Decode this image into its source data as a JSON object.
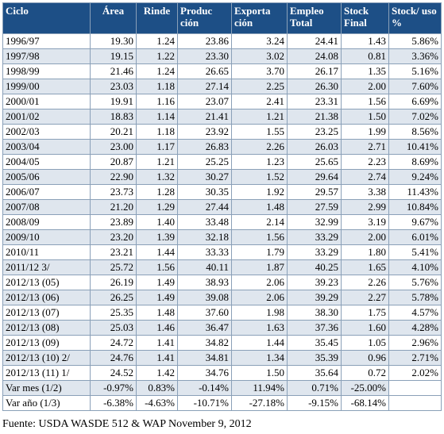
{
  "headers": [
    "Ciclo",
    "Área",
    "Rinde",
    "Produc ción",
    "Exporta ción",
    "Empleo Total",
    "Stock Final",
    "Stock/ uso %"
  ],
  "rows": [
    [
      "1996/97",
      "19.30",
      "1.24",
      "23.86",
      "3.24",
      "24.41",
      "1.43",
      "5.86%"
    ],
    [
      "1997/98",
      "19.15",
      "1.22",
      "23.30",
      "3.02",
      "24.08",
      "0.81",
      "3.36%"
    ],
    [
      "1998/99",
      "21.46",
      "1.24",
      "26.65",
      "3.70",
      "26.17",
      "1.35",
      "5.16%"
    ],
    [
      "1999/00",
      "23.03",
      "1.18",
      "27.14",
      "2.25",
      "26.30",
      "2.00",
      "7.60%"
    ],
    [
      "2000/01",
      "19.91",
      "1.16",
      "23.07",
      "2.41",
      "23.31",
      "1.56",
      "6.69%"
    ],
    [
      "2001/02",
      "18.83",
      "1.14",
      "21.41",
      "1.21",
      "21.38",
      "1.50",
      "7.02%"
    ],
    [
      "2002/03",
      "20.21",
      "1.18",
      "23.92",
      "1.55",
      "23.25",
      "1.99",
      "8.56%"
    ],
    [
      "2003/04",
      "23.00",
      "1.17",
      "26.83",
      "2.26",
      "26.03",
      "2.71",
      "10.41%"
    ],
    [
      "2004/05",
      "20.87",
      "1.21",
      "25.25",
      "1.23",
      "25.65",
      "2.23",
      "8.69%"
    ],
    [
      "2005/06",
      "22.90",
      "1.32",
      "30.27",
      "1.52",
      "29.64",
      "2.74",
      "9.24%"
    ],
    [
      "2006/07",
      "23.73",
      "1.28",
      "30.35",
      "1.92",
      "29.57",
      "3.38",
      "11.43%"
    ],
    [
      "2007/08",
      "21.20",
      "1.29",
      "27.44",
      "1.48",
      "27.59",
      "2.99",
      "10.84%"
    ],
    [
      "2008/09",
      "23.89",
      "1.40",
      "33.48",
      "2.14",
      "32.99",
      "3.19",
      "9.67%"
    ],
    [
      "2009/10",
      "23.20",
      "1.39",
      "32.18",
      "1.56",
      "33.29",
      "2.00",
      "6.01%"
    ],
    [
      "2010/11",
      "23.21",
      "1.44",
      "33.33",
      "1.79",
      "33.29",
      "1.80",
      "5.41%"
    ],
    [
      "2011/12 3/",
      "25.72",
      "1.56",
      "40.11",
      "1.87",
      "40.25",
      "1.65",
      "4.10%"
    ],
    [
      "2012/13 (05)",
      "26.19",
      "1.49",
      "38.93",
      "2.06",
      "39.23",
      "2.26",
      "5.76%"
    ],
    [
      "2012/13 (06)",
      "26.25",
      "1.49",
      "39.08",
      "2.06",
      "39.29",
      "2.27",
      "5.78%"
    ],
    [
      "2012/13 (07)",
      "25.35",
      "1.48",
      "37.60",
      "1.98",
      "38.30",
      "1.75",
      "4.57%"
    ],
    [
      "2012/13 (08)",
      "25.03",
      "1.46",
      "36.47",
      "1.63",
      "37.36",
      "1.60",
      "4.28%"
    ],
    [
      "2012/13 (09)",
      "24.72",
      "1.41",
      "34.82",
      "1.44",
      "35.45",
      "1.05",
      "2.96%"
    ],
    [
      "2012/13 (10) 2/",
      "24.76",
      "1.41",
      "34.81",
      "1.34",
      "35.39",
      "0.96",
      "2.71%"
    ],
    [
      "2012/13 (11) 1/",
      "24.52",
      "1.42",
      "34.76",
      "1.50",
      "35.64",
      "0.72",
      "2.02%"
    ],
    [
      "Var mes (1/2)",
      "-0.97%",
      "0.83%",
      "-0.14%",
      "11.94%",
      "0.71%",
      "-25.00%",
      ""
    ],
    [
      "Var año (1/3)",
      "-6.38%",
      "-4.63%",
      "-10.71%",
      "-27.18%",
      "-9.15%",
      "-68.14%",
      ""
    ]
  ],
  "source": "Fuente: USDA WASDE 512 & WAP November 9, 2012",
  "colors": {
    "header_bg": "#1d4f86",
    "header_text": "#ffffff",
    "row_stripe": "#dfe6ee",
    "border": "#8aa0b8"
  }
}
